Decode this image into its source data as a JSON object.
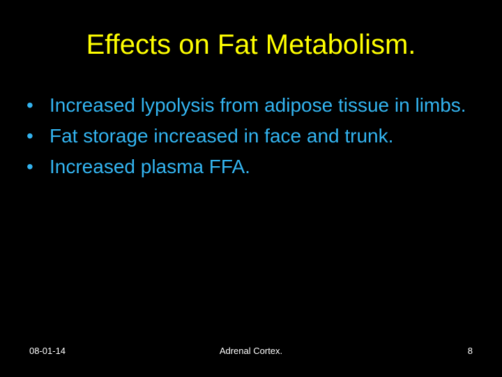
{
  "slide": {
    "title": "Effects on Fat Metabolism.",
    "bullets": [
      "Increased lypolysis from adipose tissue in limbs.",
      "Fat storage increased in face and trunk.",
      "Increased plasma FFA."
    ],
    "bullet_symbol": "•",
    "footer": {
      "date": "08-01-14",
      "center": "Adrenal Cortex.",
      "page": "8"
    }
  }
}
